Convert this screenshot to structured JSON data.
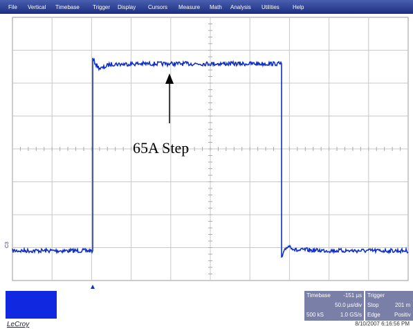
{
  "menu": [
    "File",
    "Vertical",
    "Timebase",
    "Trigger",
    "Display",
    "Cursors",
    "Measure",
    "Math",
    "Analysis",
    "Utilities",
    "Help"
  ],
  "annotation": "65A Step",
  "channel_marker": "C3",
  "timebase": {
    "title": "Timebase",
    "delay": "-151 µs",
    "scale": "50.0 µs/div",
    "samples": "500 kS",
    "rate": "1.0 GS/s"
  },
  "trigger": {
    "title": "Trigger",
    "mode": "Stop",
    "level": "201 m",
    "type": "Edge",
    "slope": "Positiv"
  },
  "brand": "LeCroy",
  "timestamp": "8/10/2007 6:16:56 PM"
}
